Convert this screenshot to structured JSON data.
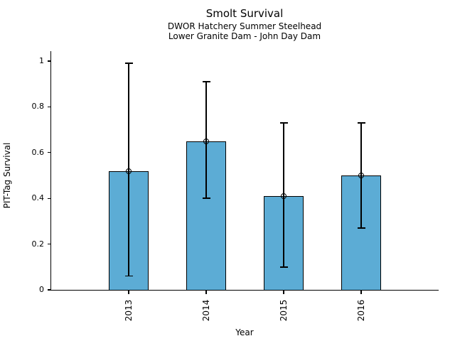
{
  "chart_data": {
    "type": "bar",
    "title": "Smolt Survival",
    "subtitle": [
      "DWOR Hatchery Summer Steelhead",
      "Lower Granite Dam - John Day Dam"
    ],
    "xlabel": "Year",
    "ylabel": "PIT-Tag Survival",
    "categories": [
      "2013",
      "2014",
      "2015",
      "2016"
    ],
    "values": [
      0.52,
      0.65,
      0.41,
      0.5
    ],
    "error_low": [
      0.06,
      0.4,
      0.1,
      0.27
    ],
    "error_high": [
      0.99,
      0.91,
      0.73,
      0.73
    ],
    "ylim": [
      0,
      1.05
    ],
    "yticks": [
      0,
      0.2,
      0.4,
      0.6,
      0.8,
      1
    ],
    "ytick_labels": [
      "0",
      "0.2",
      "0.4",
      "0.6",
      "0.8",
      "1"
    ],
    "x_tick_rotation": 90,
    "bar_color": "#5CACD5",
    "bar_edge_color": "#000000",
    "error_color": "#000000",
    "marker": "open-circle",
    "grid": false,
    "legend": null
  }
}
